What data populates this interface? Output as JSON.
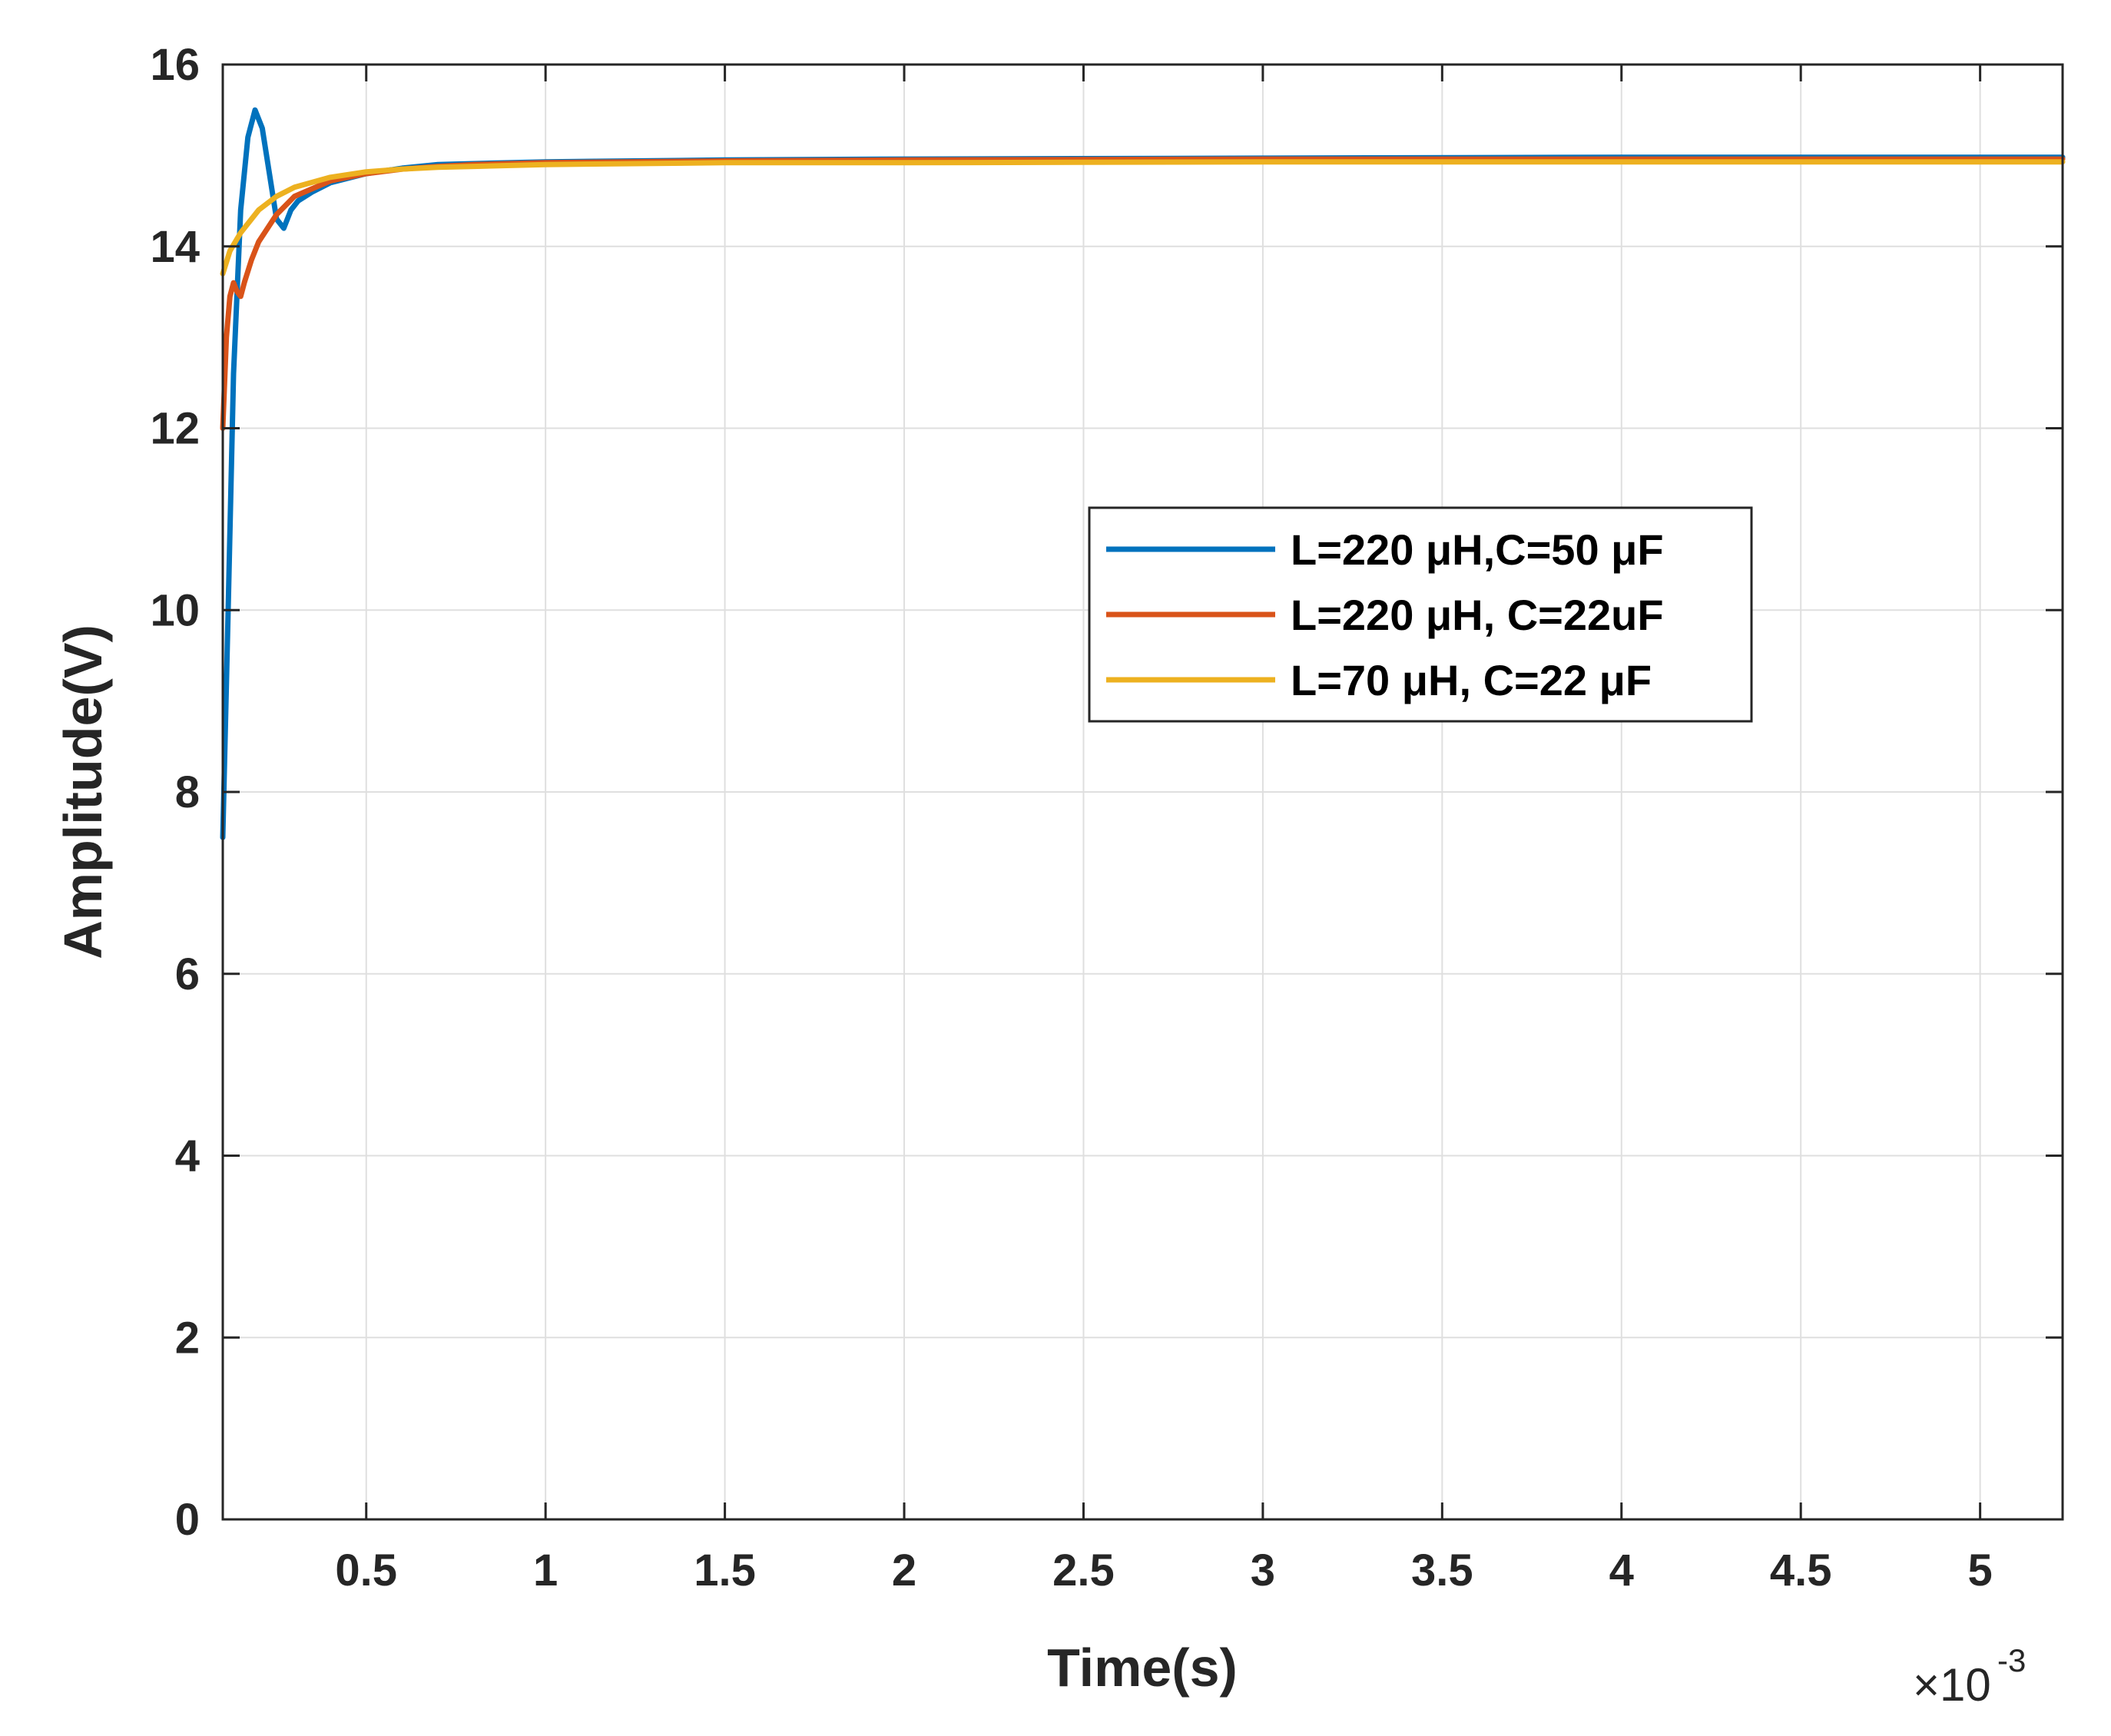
{
  "chart_data": {
    "type": "line",
    "xlabel": "Time(s)",
    "ylabel": "Amplitude(V)",
    "x_scale_note": "×10",
    "x_scale_exponent": "-3",
    "xlim": [
      0.1,
      5.23
    ],
    "ylim": [
      0,
      16
    ],
    "x_ticks": [
      "0.5",
      "1",
      "1.5",
      "2",
      "2.5",
      "3",
      "3.5",
      "4",
      "4.5",
      "5"
    ],
    "y_ticks": [
      "0",
      "2",
      "4",
      "6",
      "8",
      "10",
      "12",
      "14",
      "16"
    ],
    "grid": true,
    "legend_position": "center-right",
    "series": [
      {
        "name": "L=220 μH,C=50 μF",
        "color": "#0072BD",
        "points": [
          [
            0.1,
            7.5
          ],
          [
            0.115,
            10.0
          ],
          [
            0.13,
            12.6
          ],
          [
            0.15,
            14.4
          ],
          [
            0.17,
            15.2
          ],
          [
            0.19,
            15.5
          ],
          [
            0.21,
            15.3
          ],
          [
            0.23,
            14.8
          ],
          [
            0.25,
            14.3
          ],
          [
            0.27,
            14.2
          ],
          [
            0.29,
            14.4
          ],
          [
            0.31,
            14.5
          ],
          [
            0.35,
            14.6
          ],
          [
            0.4,
            14.7
          ],
          [
            0.5,
            14.8
          ],
          [
            0.6,
            14.86
          ],
          [
            0.7,
            14.9
          ],
          [
            0.8,
            14.91
          ],
          [
            1.0,
            14.93
          ],
          [
            1.5,
            14.95
          ],
          [
            2.0,
            14.96
          ],
          [
            3.0,
            14.97
          ],
          [
            4.0,
            14.98
          ],
          [
            5.23,
            14.98
          ]
        ]
      },
      {
        "name": "L=220 μH, C=22uF",
        "color": "#D95319",
        "points": [
          [
            0.1,
            12.0
          ],
          [
            0.11,
            13.0
          ],
          [
            0.12,
            13.45
          ],
          [
            0.13,
            13.6
          ],
          [
            0.14,
            13.5
          ],
          [
            0.15,
            13.45
          ],
          [
            0.16,
            13.6
          ],
          [
            0.18,
            13.85
          ],
          [
            0.2,
            14.05
          ],
          [
            0.25,
            14.35
          ],
          [
            0.3,
            14.55
          ],
          [
            0.4,
            14.72
          ],
          [
            0.5,
            14.8
          ],
          [
            0.6,
            14.85
          ],
          [
            0.7,
            14.88
          ],
          [
            0.8,
            14.9
          ],
          [
            1.0,
            14.92
          ],
          [
            1.5,
            14.94
          ],
          [
            2.0,
            14.95
          ],
          [
            3.0,
            14.96
          ],
          [
            4.0,
            14.96
          ],
          [
            5.23,
            14.96
          ]
        ]
      },
      {
        "name": "L=70 μH, C=22 μF",
        "color": "#EDB120",
        "points": [
          [
            0.1,
            13.7
          ],
          [
            0.12,
            13.95
          ],
          [
            0.15,
            14.15
          ],
          [
            0.2,
            14.4
          ],
          [
            0.25,
            14.55
          ],
          [
            0.3,
            14.65
          ],
          [
            0.4,
            14.76
          ],
          [
            0.5,
            14.82
          ],
          [
            0.6,
            14.85
          ],
          [
            0.7,
            14.87
          ],
          [
            0.8,
            14.88
          ],
          [
            1.0,
            14.9
          ],
          [
            1.5,
            14.92
          ],
          [
            2.0,
            14.92
          ],
          [
            3.0,
            14.93
          ],
          [
            4.0,
            14.93
          ],
          [
            5.23,
            14.93
          ]
        ]
      }
    ]
  }
}
